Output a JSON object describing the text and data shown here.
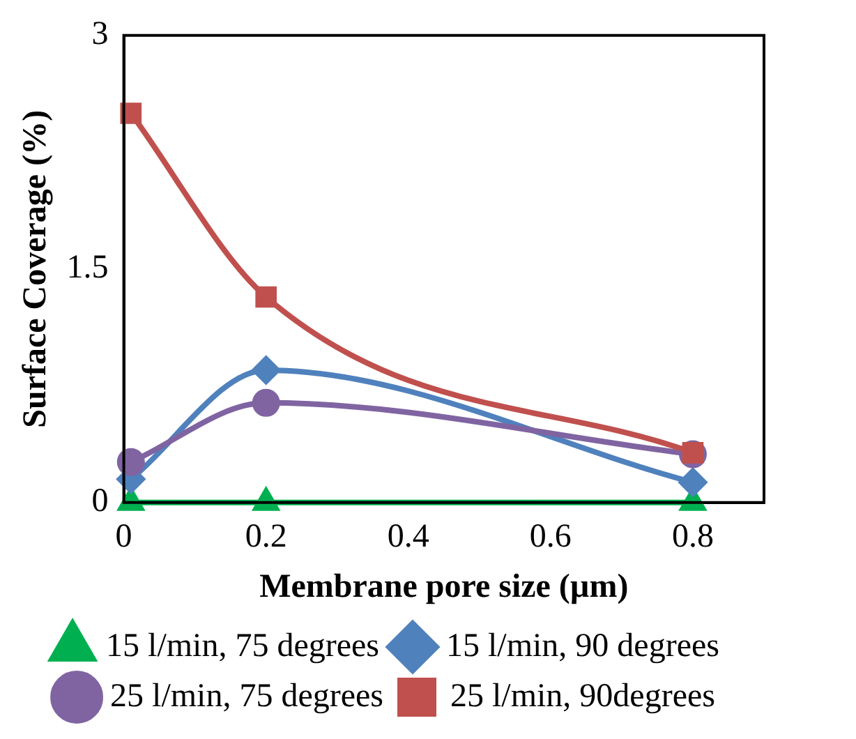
{
  "chart_data": {
    "type": "line",
    "xlabel": "Membrane pore size (µm)",
    "ylabel": "Surface Coverage (%)",
    "x": [
      0.01,
      0.2,
      0.8
    ],
    "xlim": [
      0,
      0.9
    ],
    "xticks": [
      0,
      0.2,
      0.4,
      0.6,
      0.8
    ],
    "ylim": [
      0,
      3
    ],
    "yticks": [
      0,
      1.5,
      3
    ],
    "grid": false,
    "legend": "bottom",
    "series": [
      {
        "name": "15 l/min, 75 degrees",
        "color": "#00b050",
        "marker": "triangle",
        "values": [
          0,
          0,
          0
        ]
      },
      {
        "name": "15 l/min, 90 degrees",
        "color": "#4f81bd",
        "marker": "diamond",
        "values": [
          0.15,
          0.85,
          0.13
        ]
      },
      {
        "name": "25 l/min, 75 degrees",
        "color": "#8064a2",
        "marker": "circle",
        "values": [
          0.26,
          0.64,
          0.31
        ]
      },
      {
        "name": "25 l/min, 90degrees",
        "color": "#c0504d",
        "marker": "square",
        "values": [
          2.5,
          1.32,
          0.32
        ]
      }
    ]
  }
}
